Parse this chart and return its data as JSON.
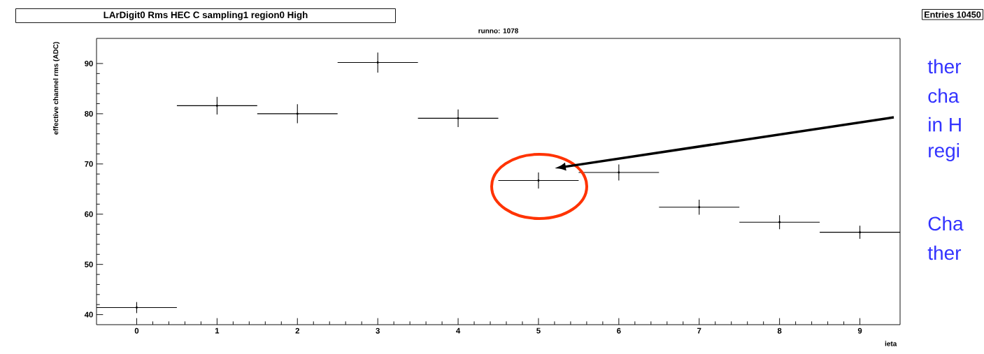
{
  "chart_data": {
    "type": "scatter",
    "title": "LArDigit0 Rms HEC C sampling1 region0 High",
    "subtitle": "runno: 1078",
    "xlabel": "ieta",
    "ylabel": "effective channel rms (ADC)",
    "x": [
      0,
      1,
      2,
      3,
      4,
      5,
      6,
      7,
      8,
      9
    ],
    "series": [
      {
        "color": "#000000",
        "values": [
          41.4,
          81.6,
          80.0,
          90.2,
          79.1,
          66.7,
          68.3,
          61.4,
          58.4,
          56.4
        ],
        "errors": [
          1.1,
          1.75,
          1.9,
          2.0,
          1.75,
          1.6,
          1.6,
          1.5,
          1.4,
          1.3
        ],
        "xerrors": [
          0.5,
          0.5,
          0.5,
          0.5,
          0.5,
          0.5,
          0.5,
          0.5,
          0.5,
          0.5
        ]
      }
    ],
    "xlim": [
      -0.5,
      9.5
    ],
    "ylim": [
      38,
      95
    ],
    "xticks": [
      0,
      1,
      2,
      3,
      4,
      5,
      6,
      7,
      8,
      9
    ],
    "yticks": [
      40,
      50,
      60,
      70,
      80,
      90
    ],
    "grid": false,
    "annotations": [
      "Entries   10450",
      "ther",
      "cha",
      "in H",
      "regi",
      "Cha",
      "ther"
    ]
  }
}
